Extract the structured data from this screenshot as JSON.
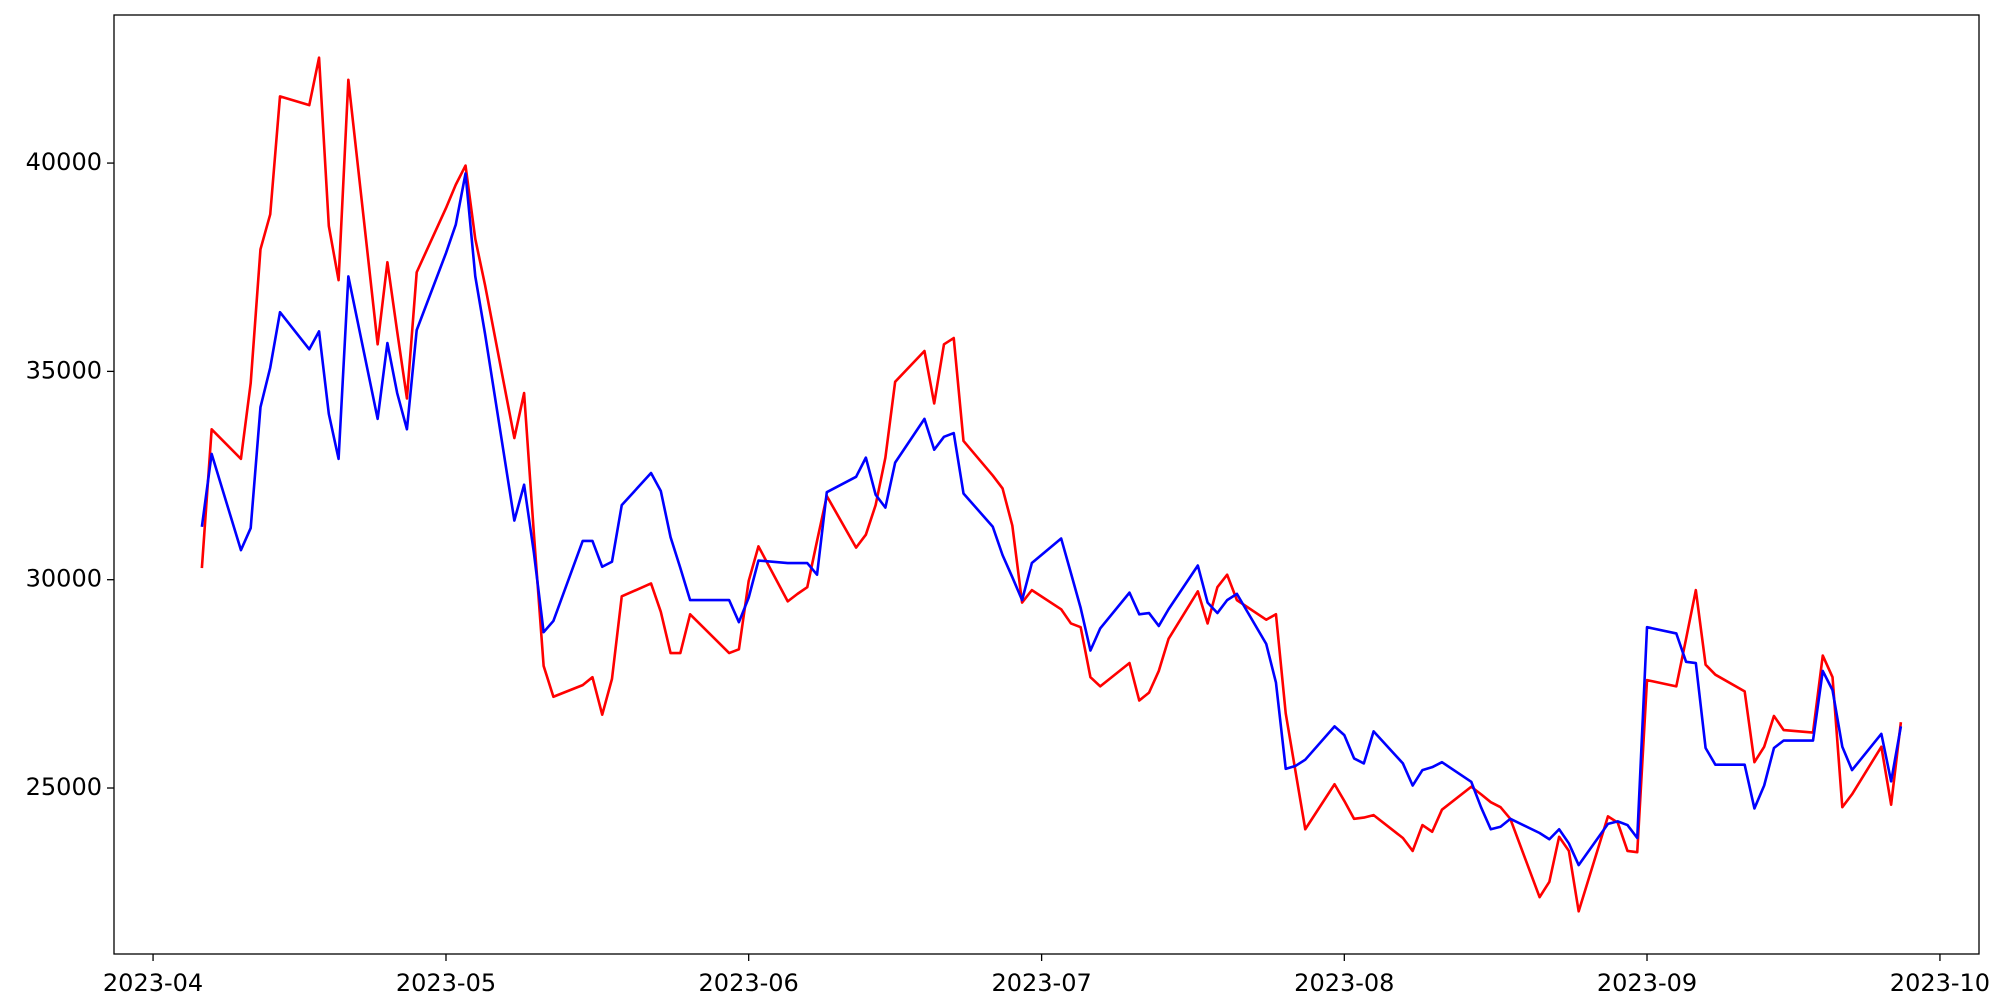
{
  "chart_data": {
    "type": "line",
    "x": [
      "2023-04-06",
      "2023-04-07",
      "2023-04-10",
      "2023-04-11",
      "2023-04-12",
      "2023-04-13",
      "2023-04-14",
      "2023-04-17",
      "2023-04-18",
      "2023-04-19",
      "2023-04-20",
      "2023-04-21",
      "2023-04-24",
      "2023-04-25",
      "2023-04-26",
      "2023-04-27",
      "2023-04-28",
      "2023-05-01",
      "2023-05-02",
      "2023-05-03",
      "2023-05-04",
      "2023-05-05",
      "2023-05-08",
      "2023-05-09",
      "2023-05-10",
      "2023-05-11",
      "2023-05-12",
      "2023-05-15",
      "2023-05-16",
      "2023-05-17",
      "2023-05-18",
      "2023-05-19",
      "2023-05-22",
      "2023-05-23",
      "2023-05-24",
      "2023-05-25",
      "2023-05-26",
      "2023-05-30",
      "2023-05-31",
      "2023-06-01",
      "2023-06-02",
      "2023-06-05",
      "2023-06-06",
      "2023-06-07",
      "2023-06-08",
      "2023-06-09",
      "2023-06-12",
      "2023-06-13",
      "2023-06-14",
      "2023-06-15",
      "2023-06-16",
      "2023-06-19",
      "2023-06-20",
      "2023-06-21",
      "2023-06-22",
      "2023-06-23",
      "2023-06-26",
      "2023-06-27",
      "2023-06-28",
      "2023-06-29",
      "2023-06-30",
      "2023-07-03",
      "2023-07-04",
      "2023-07-05",
      "2023-07-06",
      "2023-07-07",
      "2023-07-10",
      "2023-07-11",
      "2023-07-12",
      "2023-07-13",
      "2023-07-14",
      "2023-07-17",
      "2023-07-18",
      "2023-07-19",
      "2023-07-20",
      "2023-07-21",
      "2023-07-24",
      "2023-07-25",
      "2023-07-26",
      "2023-07-27",
      "2023-07-28",
      "2023-07-31",
      "2023-08-01",
      "2023-08-02",
      "2023-08-03",
      "2023-08-04",
      "2023-08-07",
      "2023-08-08",
      "2023-08-09",
      "2023-08-10",
      "2023-08-11",
      "2023-08-14",
      "2023-08-15",
      "2023-08-16",
      "2023-08-17",
      "2023-08-18",
      "2023-08-21",
      "2023-08-22",
      "2023-08-23",
      "2023-08-24",
      "2023-08-25",
      "2023-08-28",
      "2023-08-29",
      "2023-08-30",
      "2023-08-31",
      "2023-09-01",
      "2023-09-04",
      "2023-09-05",
      "2023-09-06",
      "2023-09-07",
      "2023-09-08",
      "2023-09-11",
      "2023-09-12",
      "2023-09-13",
      "2023-09-14",
      "2023-09-15",
      "2023-09-18",
      "2023-09-19",
      "2023-09-20",
      "2023-09-21",
      "2023-09-22",
      "2023-09-25",
      "2023-09-26",
      "2023-09-27"
    ],
    "series": [
      {
        "color": "red",
        "values": [
          30280,
          33610,
          32900,
          34720,
          37930,
          38770,
          41600,
          41390,
          42530,
          38490,
          37190,
          42000,
          35650,
          37620,
          35960,
          34350,
          37380,
          38920,
          39480,
          39940,
          38180,
          37070,
          33400,
          34480,
          31110,
          27930,
          27190,
          27470,
          27660,
          26760,
          27620,
          29600,
          29910,
          29230,
          28240,
          28240,
          29170,
          28240,
          28330,
          29970,
          30800,
          29480,
          29660,
          29820,
          30930,
          32010,
          30770,
          31080,
          31790,
          32930,
          34750,
          35490,
          34230,
          35650,
          35800,
          33330,
          32500,
          32190,
          31300,
          29450,
          29750,
          29290,
          28950,
          28860,
          27660,
          27440,
          28000,
          27100,
          27290,
          27810,
          28580,
          29720,
          28950,
          29820,
          30120,
          29510,
          29040,
          29170,
          26790,
          25400,
          24010,
          25090,
          24690,
          24260,
          24290,
          24350,
          23800,
          23490,
          24110,
          23950,
          24480,
          25030,
          24850,
          24660,
          24540,
          24260,
          22380,
          22750,
          23830,
          23490,
          22040,
          24320,
          24170,
          23490,
          23460,
          27590,
          27440,
          28580,
          29750,
          27960,
          27720,
          27320,
          25620,
          25990,
          26730,
          26390,
          26330,
          28180,
          27660,
          24540,
          24850,
          25990,
          24600,
          26580
        ]
      },
      {
        "color": "blue",
        "values": [
          31270,
          33020,
          30710,
          31240,
          34140,
          35090,
          36420,
          35530,
          35960,
          33980,
          32900,
          37280,
          33860,
          35680,
          34480,
          33610,
          35990,
          37840,
          38520,
          39750,
          37280,
          35900,
          31420,
          32280,
          30650,
          28740,
          29010,
          30930,
          30930,
          30310,
          30430,
          31790,
          32560,
          32130,
          31020,
          30280,
          29510,
          29510,
          28980,
          29570,
          30460,
          30400,
          30400,
          30400,
          30120,
          32100,
          32470,
          32930,
          32040,
          31730,
          32810,
          33860,
          33120,
          33430,
          33520,
          32070,
          31270,
          30590,
          30060,
          29510,
          30400,
          30990,
          30160,
          29320,
          28300,
          28830,
          29690,
          29170,
          29200,
          28890,
          29290,
          30340,
          29450,
          29200,
          29510,
          29660,
          28460,
          27530,
          25460,
          25530,
          25680,
          26480,
          26270,
          25710,
          25590,
          26360,
          25590,
          25060,
          25430,
          25500,
          25620,
          25150,
          24540,
          24010,
          24070,
          24260,
          23920,
          23770,
          24010,
          23670,
          23150,
          24140,
          24200,
          24110,
          23800,
          28860,
          28710,
          28030,
          28000,
          25960,
          25560,
          25560,
          24510,
          25060,
          25960,
          26140,
          26140,
          27810,
          27350,
          25990,
          25430,
          26300,
          25160,
          26480
        ]
      }
    ],
    "xlim": [
      "2023-03-28",
      "2023-10-05"
    ],
    "xticks": [
      {
        "value": "2023-04-01",
        "label": "2023-04"
      },
      {
        "value": "2023-05-01",
        "label": "2023-05"
      },
      {
        "value": "2023-06-01",
        "label": "2023-06"
      },
      {
        "value": "2023-07-01",
        "label": "2023-07"
      },
      {
        "value": "2023-08-01",
        "label": "2023-08"
      },
      {
        "value": "2023-09-01",
        "label": "2023-09"
      },
      {
        "value": "2023-10-01",
        "label": "2023-10"
      }
    ],
    "ylim": [
      21016,
      43554
    ],
    "yticks": [
      25000,
      30000,
      35000,
      40000
    ],
    "grid": false
  }
}
